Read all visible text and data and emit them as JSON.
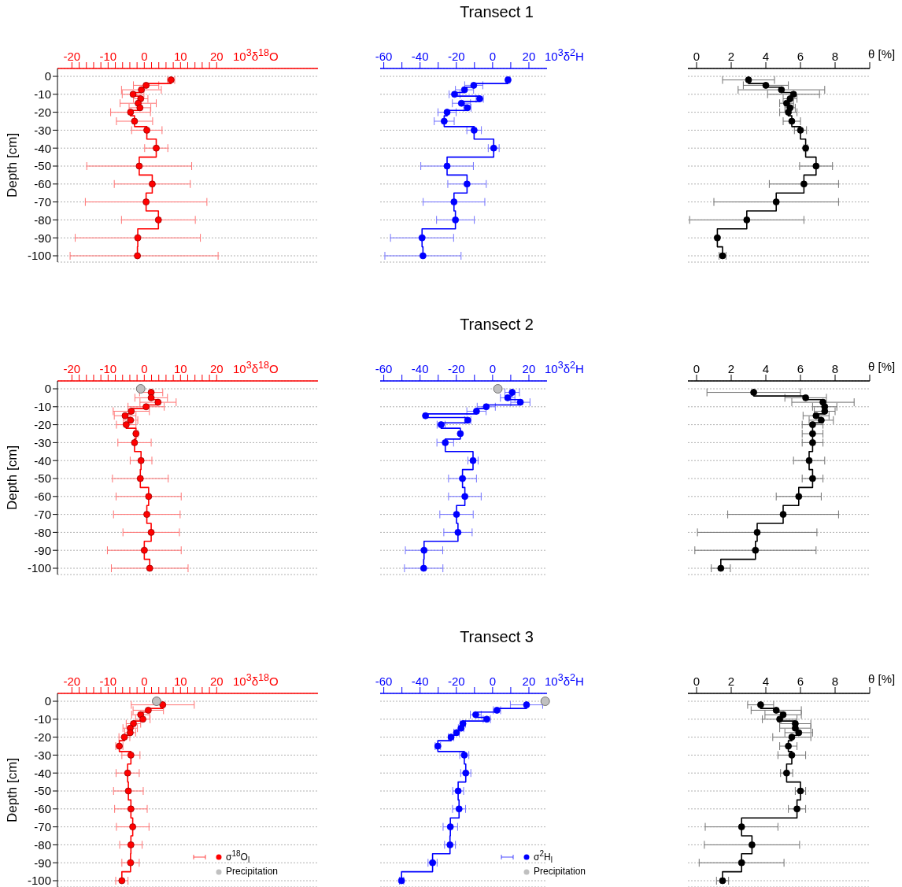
{
  "chart_data": [
    {
      "type": "scatter",
      "xlabel": "10$^{3}$δ$^{18}$O",
      "ylabel": "Depth [cm]",
      "xlim": [
        -24,
        48
      ],
      "xticks": [
        -20,
        {
          "value": -18,
          "label": null
        },
        {
          "value": -16,
          "label": null
        },
        {
          "value": -14,
          "label": null
        },
        {
          "value": -12,
          "label": null
        },
        -10,
        {
          "value": -8,
          "label": null
        },
        {
          "value": -6,
          "label": null
        },
        {
          "value": -4,
          "label": null
        },
        {
          "value": -2,
          "label": null
        },
        0,
        {
          "value": 2,
          "label": null
        },
        {
          "value": 4,
          "label": null
        },
        {
          "value": 6,
          "label": null
        },
        {
          "value": 8,
          "label": null
        },
        10,
        {
          "value": 12,
          "label": null
        },
        {
          "value": 14,
          "label": null
        },
        {
          "value": 16,
          "label": null
        },
        {
          "value": 18,
          "label": null
        },
        20
      ],
      "ylim": [
        -100,
        0
      ],
      "yticks": [
        -100,
        -90,
        -80,
        -70,
        -60,
        -50,
        -40,
        -30,
        -20,
        -10,
        0
      ],
      "grid": "y",
      "marker": "circle",
      "line_style": "solid",
      "series": [
        {
          "type": "line",
          "marker": "none",
          "color": "#ff0000",
          "x": [
            7.4,
            7.4,
            0.5,
            0.5,
            -0.8,
            -0.8,
            -3.1,
            -3.1,
            -1.0,
            -1.0,
            -1.7,
            -1.7,
            -1.2,
            -1.2,
            -3.8,
            -3.8,
            -2.7,
            -2.7,
            0.7,
            0.7,
            3.3,
            3.3,
            -1.4,
            -1.4,
            2.2,
            2.2,
            0.5,
            0.5,
            3.9,
            3.9,
            -1.8,
            -1.8,
            -1.9,
            -1.9
          ],
          "values": [
            0,
            -4,
            -4,
            -6,
            -6,
            -9,
            -9,
            -11,
            -11,
            -14,
            -14,
            -16,
            -16,
            -19,
            -19,
            -22,
            -22,
            -28,
            -28,
            -35,
            -35,
            -45,
            -45,
            -55,
            -55,
            -65,
            -65,
            -75,
            -75,
            -85,
            -85,
            -95,
            -95,
            -100
          ]
        },
        {
          "color": "#ff0000",
          "x": [
            7.4,
            0.5,
            -0.8,
            -3.1,
            -1.0,
            -1.7,
            -1.2,
            -3.8,
            -2.7,
            0.7,
            3.3,
            -1.4,
            2.2,
            0.5,
            3.9,
            -1.8,
            -1.9
          ],
          "values": [
            -2,
            -5,
            -7.5,
            -10,
            -12.5,
            -15,
            -17.5,
            -20,
            -25,
            -30,
            -40,
            -50,
            -60,
            -70,
            -80,
            -90,
            -100
          ],
          "xerrors": [
            1,
            3.5,
            5.5,
            3,
            2,
            5,
            3,
            5.5,
            5,
            4.2,
            3.2,
            14.5,
            10.5,
            16.8,
            10.2,
            17.3,
            [
              -20.5,
              20.4
            ]
          ]
        }
      ]
    },
    {
      "type": "scatter",
      "title": "Transect 1",
      "xlabel": "10$^{3}$δ$^{2}$H",
      "xlim": [
        -62,
        30
      ],
      "xticks": [
        -60,
        {
          "value": -50,
          "label": null
        },
        -40,
        {
          "value": -30,
          "label": null
        },
        -20,
        {
          "value": -10,
          "label": null
        },
        0,
        {
          "value": 10,
          "label": null
        },
        20
      ],
      "ylim": [
        -100,
        0
      ],
      "yticks": [
        -100,
        -90,
        -80,
        -70,
        -60,
        -50,
        -40,
        -30,
        -20,
        -10,
        0
      ],
      "tick_labels": "x",
      "grid": "y",
      "marker": "circle",
      "line_style": "solid",
      "series": [
        {
          "type": "line",
          "marker": "none",
          "color": "#0000ff",
          "x": [
            8.5,
            8.5,
            -10.4,
            -10.4,
            -15.5,
            -15.5,
            -21,
            -21,
            -7.1,
            -7.1,
            -17.2,
            -17.2,
            -13.9,
            -13.9,
            -25.1,
            -25.1,
            -26.7,
            -26.7,
            -10.2,
            -10.2,
            0.6,
            0.6,
            -25.1,
            -25.1,
            -14.1,
            -14.1,
            -21.3,
            -21.3,
            -20.5,
            -20.5,
            -38.9,
            -38.9,
            -38.4,
            -38.4
          ],
          "values": [
            0,
            -4,
            -4,
            -6,
            -6,
            -9,
            -9,
            -11,
            -11,
            -14,
            -14,
            -16,
            -16,
            -19,
            -19,
            -22,
            -22,
            -28,
            -28,
            -35,
            -35,
            -45,
            -45,
            -55,
            -55,
            -65,
            -65,
            -75,
            -75,
            -85,
            -85,
            -95,
            -95,
            -100
          ]
        },
        {
          "color": "#0000ff",
          "x": [
            8.5,
            -10.4,
            -15.5,
            -21,
            -7.1,
            -17.2,
            -13.9,
            -25.1,
            -26.7,
            -10.2,
            0.6,
            -25.1,
            -14.1,
            -21.3,
            -20.5,
            -38.9,
            -38.4
          ],
          "values": [
            -2,
            -5,
            -7.5,
            -10,
            -12.5,
            -15,
            -17.5,
            -20,
            -25,
            -30,
            -40,
            -50,
            -60,
            -70,
            -80,
            -90,
            -100
          ],
          "xerrors": [
            1,
            5,
            5,
            3,
            2,
            5,
            2,
            5,
            5.5,
            4,
            3,
            14.5,
            10.6,
            17,
            10.4,
            17.4,
            21
          ]
        }
      ]
    },
    {
      "type": "scatter",
      "xlabel": "θ  [%]",
      "xlim": [
        -0.5,
        10
      ],
      "xticks": [
        0,
        2,
        4,
        6,
        8,
        {
          "value": 10,
          "label": null
        }
      ],
      "ylim": [
        -100,
        0
      ],
      "yticks": [
        -100,
        -90,
        -80,
        -70,
        -60,
        -50,
        -40,
        -30,
        -20,
        -10,
        0
      ],
      "tick_labels": "x",
      "grid": "y",
      "marker": "circle",
      "line_style": "solid",
      "series": [
        {
          "type": "line",
          "marker": "none",
          "color": "#000000",
          "x": [
            3.0,
            3.0,
            4.0,
            4.0,
            4.9,
            4.9,
            5.6,
            5.6,
            5.4,
            5.4,
            5.2,
            5.2,
            5.4,
            5.4,
            5.3,
            5.3,
            5.5,
            5.5,
            6.0,
            6.0,
            6.3,
            6.3,
            6.9,
            6.9,
            6.2,
            6.2,
            4.6,
            4.6,
            2.9,
            2.9,
            1.2,
            1.2,
            1.5,
            1.5
          ],
          "values": [
            0,
            -4,
            -4,
            -6,
            -6,
            -9,
            -9,
            -11,
            -11,
            -14,
            -14,
            -16,
            -16,
            -19,
            -19,
            -22,
            -22,
            -28,
            -28,
            -35,
            -35,
            -45,
            -45,
            -55,
            -55,
            -65,
            -65,
            -75,
            -75,
            -85,
            -85,
            -95,
            -95,
            -100
          ]
        },
        {
          "color": "#000000",
          "x": [
            3.0,
            4.0,
            4.9,
            5.6,
            5.4,
            5.2,
            5.4,
            5.3,
            5.5,
            6.0,
            6.3,
            6.9,
            6.2,
            4.6,
            2.9,
            1.2,
            1.5
          ],
          "values": [
            -2,
            -5,
            -7.5,
            -10,
            -12.5,
            -15,
            -17.5,
            -20,
            -25,
            -30,
            -40,
            -50,
            -60,
            -70,
            -80,
            -90,
            -100
          ],
          "xerrors": [
            1.5,
            1.3,
            2.5,
            1.5,
            0.4,
            0.4,
            0.3,
            0.5,
            0.5,
            0.35,
            0.1,
            0.95,
            2,
            3.6,
            3.3,
            null,
            0.2
          ]
        }
      ]
    },
    {
      "type": "scatter",
      "xlabel": "10$^{3}$δ$^{18}$O",
      "ylabel": "Depth [cm]",
      "xlim": [
        -24,
        48
      ],
      "xticks": [
        -20,
        {
          "value": -18,
          "label": null
        },
        {
          "value": -16,
          "label": null
        },
        {
          "value": -14,
          "label": null
        },
        {
          "value": -12,
          "label": null
        },
        -10,
        {
          "value": -8,
          "label": null
        },
        {
          "value": -6,
          "label": null
        },
        {
          "value": -4,
          "label": null
        },
        {
          "value": -2,
          "label": null
        },
        0,
        {
          "value": 2,
          "label": null
        },
        {
          "value": 4,
          "label": null
        },
        {
          "value": 6,
          "label": null
        },
        {
          "value": 8,
          "label": null
        },
        10,
        {
          "value": 12,
          "label": null
        },
        {
          "value": 14,
          "label": null
        },
        {
          "value": 16,
          "label": null
        },
        {
          "value": 18,
          "label": null
        },
        20
      ],
      "ylim": [
        -100,
        0
      ],
      "yticks": [
        -100,
        -90,
        -80,
        -70,
        -60,
        -50,
        -40,
        -30,
        -20,
        -10,
        0
      ],
      "grid": "y",
      "marker": "circle",
      "line_style": "solid",
      "series": [
        {
          "type": "line",
          "marker": "none",
          "color": "#ff0000",
          "x": [
            1.9,
            1.9,
            1.9,
            1.9,
            3.8,
            3.8,
            0.5,
            0.5,
            -3.6,
            -3.6,
            -5.3,
            -5.3,
            -3.8,
            -3.8,
            -5,
            -5,
            -2.3,
            -2.3,
            -2.7,
            -2.7,
            -0.9,
            -0.9,
            -1.1,
            -1.1,
            1.2,
            1.2,
            0.7,
            0.7,
            1.9,
            1.9,
            0,
            0,
            1.5,
            1.5
          ],
          "values": [
            0,
            -4,
            -4,
            -6,
            -6,
            -9,
            -9,
            -11,
            -11,
            -14,
            -14,
            -16,
            -16,
            -19,
            -19,
            -22,
            -22,
            -28,
            -28,
            -35,
            -35,
            -45,
            -45,
            -55,
            -55,
            -65,
            -65,
            -75,
            -75,
            -85,
            -85,
            -95,
            -95,
            -100
          ]
        },
        {
          "color": "#ff0000",
          "x": [
            1.9,
            1.9,
            3.8,
            0.5,
            -3.6,
            -5.3,
            -3.8,
            -5,
            -2.3,
            -2.7,
            -0.9,
            -1.1,
            1.2,
            0.7,
            1.9,
            0,
            1.5
          ],
          "values": [
            -2,
            -5,
            -7.5,
            -10,
            -12.5,
            -15,
            -17.5,
            -20,
            -25,
            -30,
            -40,
            -50,
            -60,
            -70,
            -80,
            -90,
            -100
          ],
          "xerrors": [
            3.2,
            4.5,
            5,
            5,
            5,
            3,
            2,
            2.7,
            0.5,
            4.6,
            3,
            7.7,
            9,
            9.2,
            7.8,
            10.2,
            10.6
          ]
        },
        {
          "color": "#c0c0c0",
          "x": [
            -1
          ],
          "values": [
            0
          ]
        }
      ]
    },
    {
      "type": "scatter",
      "title": "Transect 2",
      "xlabel": "10$^{3}$δ$^{2}$H",
      "xlim": [
        -62,
        30
      ],
      "xticks": [
        -60,
        {
          "value": -50,
          "label": null
        },
        -40,
        {
          "value": -30,
          "label": null
        },
        -20,
        {
          "value": -10,
          "label": null
        },
        0,
        {
          "value": 10,
          "label": null
        },
        20
      ],
      "ylim": [
        -100,
        0
      ],
      "yticks": [
        -100,
        -90,
        -80,
        -70,
        -60,
        -50,
        -40,
        -30,
        -20,
        -10,
        0
      ],
      "tick_labels": "x",
      "grid": "y",
      "marker": "circle",
      "line_style": "solid",
      "series": [
        {
          "type": "line",
          "marker": "none",
          "color": "#0000ff",
          "x": [
            10.8,
            10.8,
            8.3,
            8.3,
            15.3,
            15.3,
            -3.5,
            -3.5,
            -8.9,
            -8.9,
            -37,
            -37,
            -13.7,
            -13.7,
            -28.4,
            -28.4,
            -17.8,
            -17.8,
            -26.1,
            -26.1,
            -10.8,
            -10.8,
            -16.6,
            -16.6,
            -15.3,
            -15.3,
            -19.9,
            -19.9,
            -19.1,
            -19.1,
            -37.8,
            -37.8,
            -38,
            -38
          ],
          "values": [
            0,
            -4,
            -4,
            -6,
            -6,
            -9,
            -9,
            -11,
            -11,
            -14,
            -14,
            -16,
            -16,
            -19,
            -19,
            -22,
            -22,
            -28,
            -28,
            -35,
            -35,
            -45,
            -45,
            -55,
            -55,
            -65,
            -65,
            -75,
            -75,
            -85,
            -85,
            -95,
            -95,
            -100
          ]
        },
        {
          "color": "#0000ff",
          "x": [
            10.8,
            8.3,
            15.3,
            -3.5,
            -8.9,
            -37,
            -13.7,
            -28.4,
            -17.8,
            -26.1,
            -10.8,
            -16.6,
            -15.3,
            -19.9,
            -19.1,
            -37.8,
            -38
          ],
          "values": [
            -2,
            -5,
            -7.5,
            -10,
            -12.5,
            -15,
            -17.5,
            -20,
            -25,
            -30,
            -40,
            -50,
            -60,
            -70,
            -80,
            -90,
            -100
          ],
          "xerrors": [
            4,
            4,
            5.3,
            5,
            5.3,
            null,
            1.7,
            2.2,
            null,
            4.6,
            2.8,
            7.7,
            9,
            9.2,
            7.8,
            10.3,
            10.6
          ]
        },
        {
          "color": "#c0c0c0",
          "x": [
            2.9
          ],
          "values": [
            0
          ]
        }
      ]
    },
    {
      "type": "scatter",
      "xlabel": "θ  [%]",
      "xlim": [
        -0.5,
        10
      ],
      "xticks": [
        0,
        2,
        4,
        6,
        8,
        {
          "value": 10,
          "label": null
        }
      ],
      "ylim": [
        -100,
        0
      ],
      "yticks": [
        -100,
        -90,
        -80,
        -70,
        -60,
        -50,
        -40,
        -30,
        -20,
        -10,
        0
      ],
      "tick_labels": "x",
      "grid": "y",
      "marker": "circle",
      "line_style": "solid",
      "series": [
        {
          "type": "line",
          "marker": "none",
          "color": "#000000",
          "x": [
            3.3,
            3.3,
            6.3,
            6.3,
            7.3,
            7.3,
            7.4,
            7.4,
            7.4,
            7.4,
            6.9,
            6.9,
            7.2,
            7.2,
            6.7,
            6.7,
            6.7,
            6.7,
            6.7,
            6.7,
            6.5,
            6.5,
            6.7,
            6.7,
            5.9,
            5.9,
            5.0,
            5.0,
            3.5,
            3.5,
            3.4,
            3.4,
            1.4,
            1.4
          ],
          "values": [
            0,
            -4,
            -4,
            -6,
            -6,
            -9,
            -9,
            -11,
            -11,
            -14,
            -14,
            -16,
            -16,
            -19,
            -19,
            -22,
            -22,
            -28,
            -28,
            -35,
            -35,
            -45,
            -45,
            -55,
            -55,
            -65,
            -65,
            -75,
            -75,
            -85,
            -85,
            -95,
            -95,
            -100
          ]
        },
        {
          "color": "#000000",
          "x": [
            3.3,
            6.3,
            7.3,
            7.4,
            7.4,
            6.9,
            7.2,
            6.7,
            6.7,
            6.7,
            6.5,
            6.7,
            5.9,
            5.0,
            3.5,
            3.4,
            1.4
          ],
          "values": [
            -2,
            -5,
            -7.5,
            -10,
            -12.5,
            -15,
            -17.5,
            -20,
            -25,
            -30,
            -40,
            -50,
            -60,
            -70,
            -80,
            -90,
            -100
          ],
          "xerrors": [
            2.7,
            1.2,
            1.8,
            0.7,
            0.6,
            0.75,
            0.7,
            0.6,
            0.6,
            0.6,
            0.9,
            0.6,
            1.3,
            3.2,
            3.45,
            3.5,
            0.55
          ]
        }
      ]
    },
    {
      "type": "scatter",
      "xlabel": "10$^{3}$δ$^{18}$O",
      "ylabel": "Depth [cm]",
      "xlim": [
        -24,
        48
      ],
      "xticks": [
        -20,
        {
          "value": -18,
          "label": null
        },
        {
          "value": -16,
          "label": null
        },
        {
          "value": -14,
          "label": null
        },
        {
          "value": -12,
          "label": null
        },
        -10,
        {
          "value": -8,
          "label": null
        },
        {
          "value": -6,
          "label": null
        },
        {
          "value": -4,
          "label": null
        },
        {
          "value": -2,
          "label": null
        },
        0,
        {
          "value": 2,
          "label": null
        },
        {
          "value": 4,
          "label": null
        },
        {
          "value": 6,
          "label": null
        },
        {
          "value": 8,
          "label": null
        },
        10,
        {
          "value": 12,
          "label": null
        },
        {
          "value": 14,
          "label": null
        },
        {
          "value": 16,
          "label": null
        },
        {
          "value": 18,
          "label": null
        },
        20
      ],
      "ylim": [
        -100,
        0
      ],
      "yticks": [
        -100,
        -90,
        -80,
        -70,
        -60,
        -50,
        -40,
        -30,
        -20,
        -10,
        0
      ],
      "grid": "y",
      "marker": "circle",
      "line_style": "solid",
      "legend": "bottom right",
      "series": [
        {
          "type": "line",
          "marker": "none",
          "color": "#ff0000",
          "x": [
            5.1,
            5.1,
            1.1,
            1.1,
            -1,
            -1,
            -0.4,
            -0.4,
            -3,
            -3,
            -3.9,
            -3.9,
            -3.9,
            -3.9,
            -5.5,
            -5.5,
            -6.9,
            -6.9,
            -3.7,
            -3.7,
            -4.6,
            -4.6,
            -4.4,
            -4.4,
            -3.7,
            -3.7,
            -3.2,
            -3.2,
            -3.7,
            -3.7,
            -3.8,
            -3.8,
            -6.2,
            -6.2
          ],
          "values": [
            0,
            -4,
            -4,
            -6,
            -6,
            -9,
            -9,
            -11,
            -11,
            -14,
            -14,
            -16,
            -16,
            -19,
            -19,
            -22,
            -22,
            -28,
            -28,
            -35,
            -35,
            -45,
            -45,
            -55,
            -55,
            -65,
            -65,
            -75,
            -75,
            -85,
            -85,
            -95,
            -95,
            -100
          ]
        },
        {
          "name": "σ$^{18}$O$_{l}$",
          "color": "#ff0000",
          "x": [
            5.1,
            1.1,
            -1,
            -0.4,
            -3,
            -3.9,
            -3.9,
            -5.5,
            -6.9,
            -3.7,
            -4.6,
            -4.4,
            -3.7,
            -3.2,
            -3.7,
            -3.8,
            -6.2
          ],
          "values": [
            -2,
            -5,
            -7.5,
            -10,
            -12.5,
            -15,
            -17.5,
            -20,
            -25,
            -30,
            -40,
            -50,
            -60,
            -70,
            -80,
            -90,
            -100
          ],
          "xerrors": [
            8.7,
            4.2,
            2.5,
            2,
            2,
            2,
            1.5,
            1.5,
            1,
            2.5,
            3.2,
            4.1,
            4.5,
            4.5,
            3.1,
            2.4,
            1.7
          ]
        },
        {
          "name": "Precipitation",
          "color": "#c0c0c0",
          "x": [
            3.4
          ],
          "values": [
            0
          ]
        }
      ]
    },
    {
      "type": "scatter",
      "title": "Transect 3",
      "xlabel": "10$^{3}$δ$^{2}$H",
      "xlim": [
        -62,
        30
      ],
      "xticks": [
        -60,
        {
          "value": -50,
          "label": null
        },
        -40,
        {
          "value": -30,
          "label": null
        },
        -20,
        {
          "value": -10,
          "label": null
        },
        0,
        {
          "value": 10,
          "label": null
        },
        20
      ],
      "ylim": [
        -100,
        0
      ],
      "yticks": [
        -100,
        -90,
        -80,
        -70,
        -60,
        -50,
        -40,
        -30,
        -20,
        -10,
        0
      ],
      "tick_labels": "x",
      "grid": "y",
      "marker": "circle",
      "line_style": "solid",
      "legend": "bottom right",
      "series": [
        {
          "type": "line",
          "marker": "none",
          "color": "#0000ff",
          "x": [
            18.7,
            18.7,
            2.4,
            2.4,
            -9.3,
            -9.3,
            -3.2,
            -3.2,
            -16.4,
            -16.4,
            -17.4,
            -17.4,
            -19.9,
            -19.9,
            -22.9,
            -22.9,
            -30.2,
            -30.2,
            -15.6,
            -15.6,
            -14.8,
            -14.8,
            -19,
            -19,
            -18.5,
            -18.5,
            -23.3,
            -23.3,
            -23.5,
            -23.5,
            -33.1,
            -33.1,
            -50.2,
            -50.2
          ],
          "values": [
            0,
            -4,
            -4,
            -6,
            -6,
            -9,
            -9,
            -11,
            -11,
            -14,
            -14,
            -16,
            -16,
            -19,
            -19,
            -22,
            -22,
            -28,
            -28,
            -35,
            -35,
            -45,
            -45,
            -55,
            -55,
            -65,
            -65,
            -75,
            -75,
            -85,
            -85,
            -95,
            -95,
            -100
          ]
        },
        {
          "name": "σ$^{2}$H$_{l}$",
          "color": "#0000ff",
          "x": [
            18.7,
            2.4,
            -9.3,
            -3.2,
            -16.4,
            -17.4,
            -19.9,
            -22.9,
            -30.2,
            -15.6,
            -14.8,
            -19,
            -18.5,
            -23.3,
            -23.5,
            -33.1,
            -50.2
          ],
          "values": [
            -2,
            -5,
            -7.5,
            -10,
            -12.5,
            -15,
            -17.5,
            -20,
            -25,
            -30,
            -40,
            -50,
            -60,
            -70,
            -80,
            -90,
            -100
          ],
          "xerrors": [
            8.9,
            2,
            3,
            2,
            1.5,
            1.5,
            1.5,
            1.5,
            1.5,
            2.5,
            2.8,
            3,
            3.6,
            4,
            3,
            2.5,
            1.2
          ]
        },
        {
          "name": "Precipitation",
          "color": "#c0c0c0",
          "x": [
            29
          ],
          "values": [
            0
          ]
        }
      ]
    },
    {
      "type": "scatter",
      "xlabel": "θ  [%]",
      "xlim": [
        -0.5,
        10
      ],
      "xticks": [
        0,
        2,
        4,
        6,
        8,
        {
          "value": 10,
          "label": null
        }
      ],
      "ylim": [
        -100,
        0
      ],
      "yticks": [
        -100,
        -90,
        -80,
        -70,
        -60,
        -50,
        -40,
        -30,
        -20,
        -10,
        0
      ],
      "tick_labels": "x",
      "grid": "y",
      "marker": "circle",
      "line_style": "solid",
      "series": [
        {
          "type": "line",
          "marker": "none",
          "color": "#000000",
          "x": [
            3.7,
            3.7,
            4.6,
            4.6,
            5.0,
            5.0,
            4.8,
            4.8,
            5.7,
            5.7,
            5.7,
            5.7,
            5.9,
            5.9,
            5.5,
            5.5,
            5.3,
            5.3,
            5.5,
            5.5,
            5.2,
            5.2,
            6.0,
            6.0,
            5.8,
            5.8,
            2.6,
            2.6,
            3.2,
            3.2,
            2.6,
            2.6,
            1.5,
            1.5
          ],
          "values": [
            0,
            -4,
            -4,
            -6,
            -6,
            -9,
            -9,
            -11,
            -11,
            -14,
            -14,
            -16,
            -16,
            -19,
            -19,
            -22,
            -22,
            -28,
            -28,
            -35,
            -35,
            -45,
            -45,
            -55,
            -55,
            -65,
            -65,
            -75,
            -75,
            -85,
            -85,
            -95,
            -95,
            -100
          ]
        },
        {
          "color": "#000000",
          "x": [
            3.7,
            4.6,
            5.0,
            4.8,
            5.7,
            5.7,
            5.9,
            5.5,
            5.3,
            5.5,
            5.2,
            6.0,
            5.8,
            2.6,
            3.2,
            2.6,
            1.5
          ],
          "values": [
            -2,
            -5,
            -7.5,
            -10,
            -12.5,
            -15,
            -17.5,
            -20,
            -25,
            -30,
            -40,
            -50,
            -60,
            -70,
            -80,
            -90,
            -100
          ],
          "xerrors": [
            0.75,
            1.45,
            1.05,
            1,
            0.9,
            0.9,
            0.8,
            1.1,
            0.5,
            0.8,
            0.35,
            0.3,
            0.5,
            2.1,
            2.75,
            2.45,
            0.35
          ]
        }
      ]
    }
  ]
}
